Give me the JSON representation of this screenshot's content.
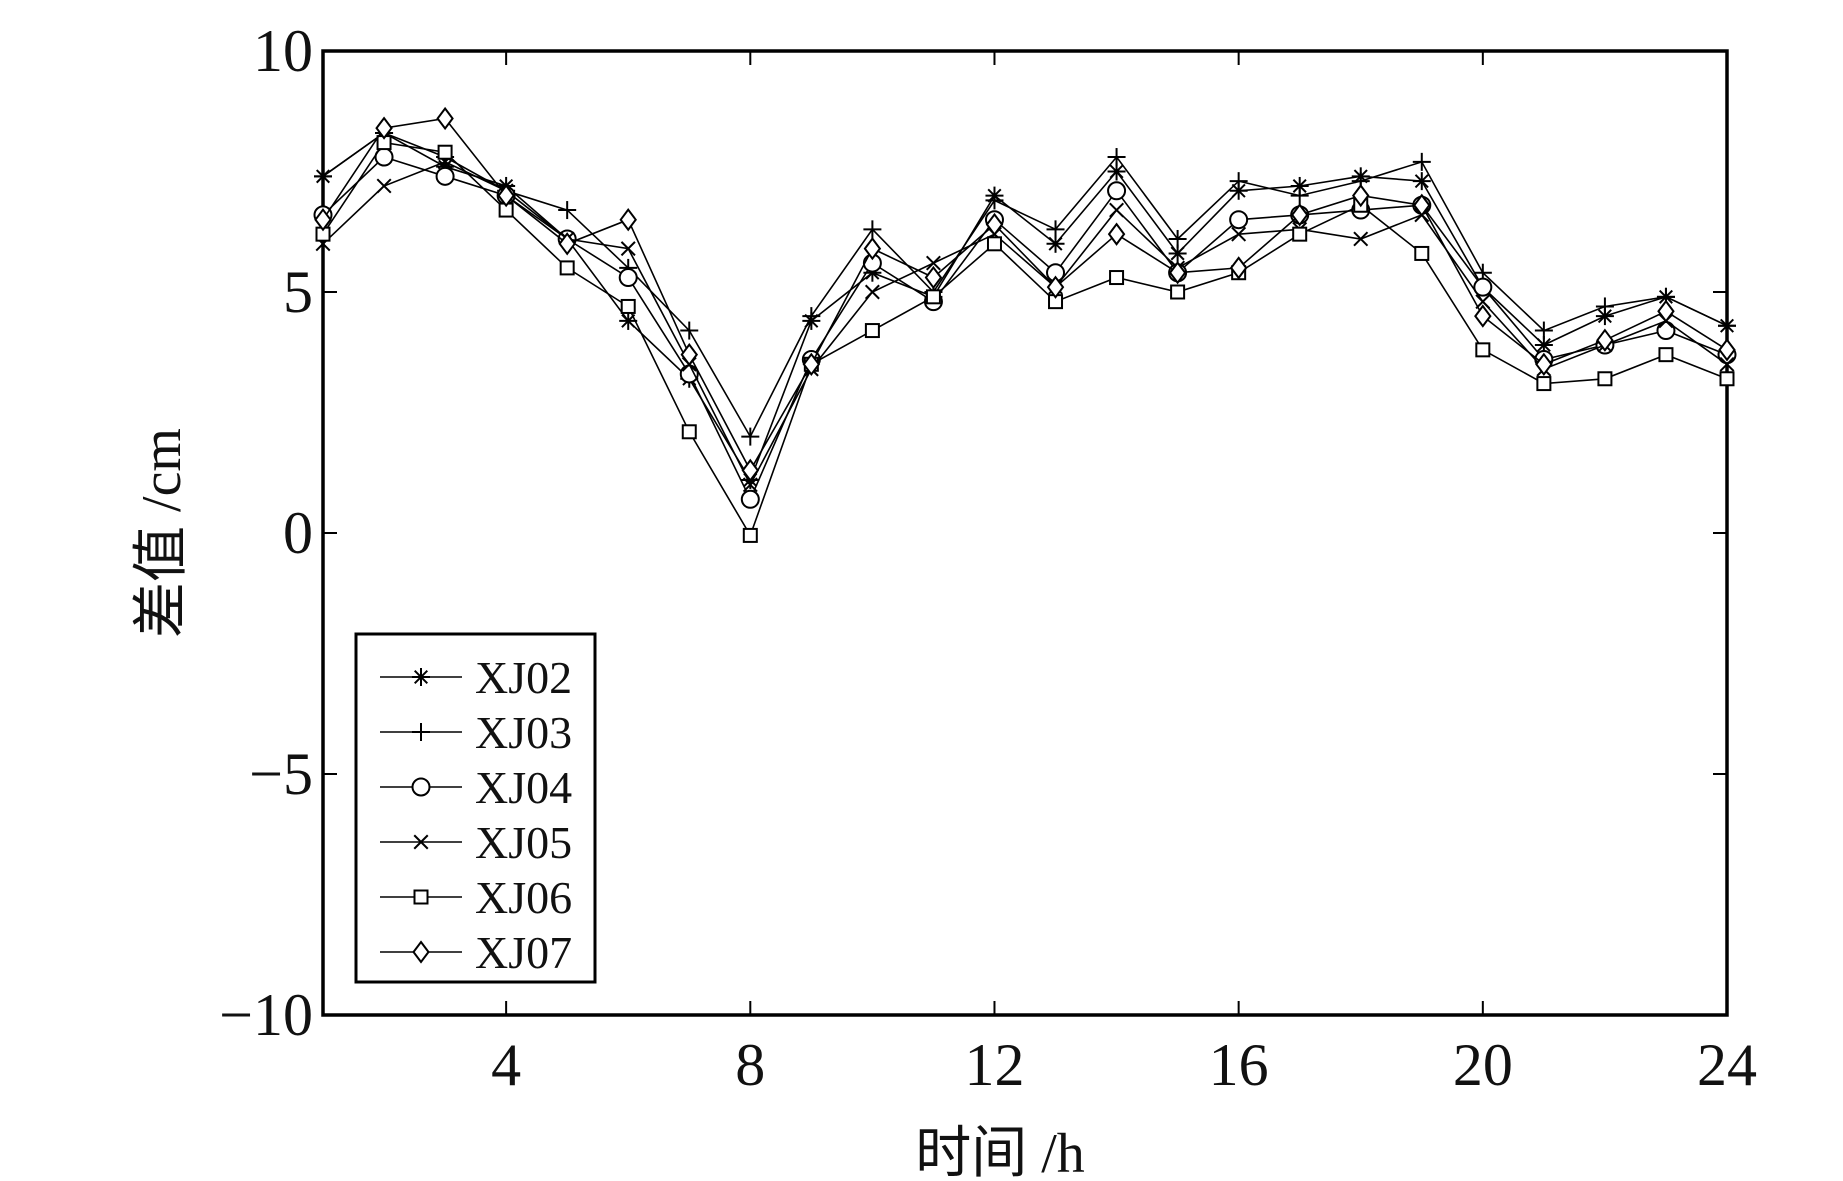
{
  "chart_data": {
    "type": "line",
    "title": "",
    "xlabel": "时间 /h",
    "ylabel": "差值 /cm",
    "xlim": [
      1,
      24
    ],
    "ylim": [
      -10,
      10
    ],
    "xticks": [
      4,
      8,
      12,
      16,
      20,
      24
    ],
    "yticks": [
      -10,
      -5,
      0,
      5,
      10
    ],
    "ytick_labels": [
      "−10",
      "−5",
      "0",
      "5",
      "10"
    ],
    "grid": false,
    "legend_position": "bottom-left",
    "x": [
      1,
      2,
      3,
      4,
      5,
      6,
      7,
      8,
      9,
      10,
      11,
      12,
      13,
      14,
      15,
      16,
      17,
      18,
      19,
      20,
      21,
      22,
      23,
      24
    ],
    "series": [
      {
        "name": "XJ02",
        "marker": "asterisk",
        "values": [
          7.4,
          8.3,
          7.6,
          7.2,
          6.1,
          4.4,
          3.2,
          1.1,
          4.4,
          5.4,
          4.9,
          7.0,
          6.0,
          7.5,
          5.8,
          7.1,
          7.2,
          7.4,
          7.3,
          5.1,
          3.9,
          4.5,
          4.9,
          4.3
        ]
      },
      {
        "name": "XJ03",
        "marker": "plus",
        "values": [
          7.4,
          8.3,
          7.8,
          7.1,
          6.7,
          5.5,
          4.2,
          2.0,
          4.5,
          6.3,
          5.0,
          6.9,
          6.3,
          7.8,
          6.1,
          7.3,
          7.0,
          7.3,
          7.7,
          5.4,
          4.2,
          4.7,
          4.9,
          4.3
        ]
      },
      {
        "name": "XJ04",
        "marker": "circle",
        "values": [
          6.6,
          7.8,
          7.4,
          7.0,
          6.1,
          5.3,
          3.3,
          0.7,
          3.6,
          5.6,
          4.8,
          6.5,
          5.4,
          7.1,
          5.4,
          6.5,
          6.6,
          6.7,
          6.8,
          5.1,
          3.6,
          3.9,
          4.2,
          3.7
        ]
      },
      {
        "name": "XJ05",
        "marker": "x",
        "values": [
          6.0,
          7.2,
          7.7,
          7.1,
          6.1,
          5.9,
          3.5,
          1.0,
          3.4,
          5.0,
          5.6,
          6.2,
          5.1,
          6.7,
          5.5,
          6.2,
          6.3,
          6.1,
          6.6,
          4.8,
          3.4,
          3.9,
          4.4,
          3.5
        ]
      },
      {
        "name": "XJ06",
        "marker": "square",
        "values": [
          6.2,
          8.1,
          7.9,
          6.7,
          5.5,
          4.7,
          2.1,
          -0.05,
          3.5,
          4.2,
          4.9,
          6.0,
          4.8,
          5.3,
          5.0,
          5.4,
          6.2,
          6.8,
          5.8,
          3.8,
          3.1,
          3.2,
          3.7,
          3.2
        ]
      },
      {
        "name": "XJ07",
        "marker": "diamond",
        "values": [
          6.5,
          8.4,
          8.6,
          7.0,
          6.0,
          6.5,
          3.7,
          1.3,
          3.5,
          5.9,
          5.3,
          6.4,
          5.1,
          6.2,
          5.4,
          5.5,
          6.6,
          7.0,
          6.8,
          4.5,
          3.5,
          4.0,
          4.6,
          3.8
        ]
      }
    ]
  }
}
